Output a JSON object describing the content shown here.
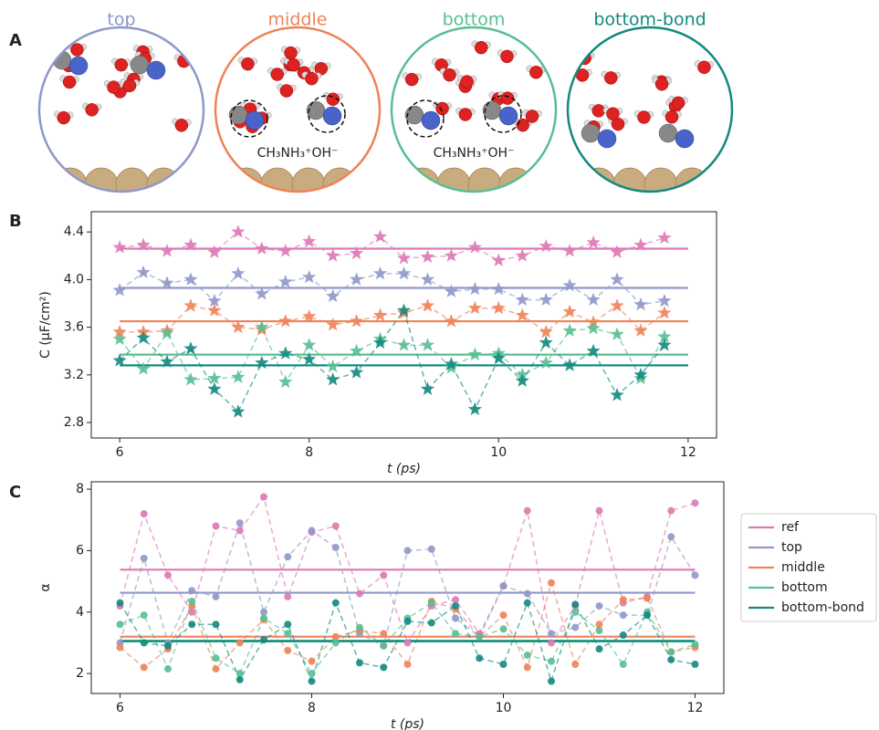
{
  "figure_panel": {
    "label": "A",
    "views": [
      {
        "title": "top",
        "color": "#8f98c9"
      },
      {
        "title": "middle",
        "color": "#ee8358",
        "annotation": "CH₃NH₃⁺OH⁻"
      },
      {
        "title": "bottom",
        "color": "#58bf93",
        "annotation": "CH₃NH₃⁺OH⁻"
      },
      {
        "title": "bottom-bond",
        "color": "#138a7f"
      }
    ]
  },
  "chart_data": [
    {
      "type": "line",
      "panel_label": "B",
      "xlabel": "t (ps)",
      "ylabel": "C (μF/cm²)",
      "marker": "star",
      "xlim": [
        5.7,
        12.3
      ],
      "ylim": [
        2.67,
        4.57
      ],
      "xticks": [
        6,
        8,
        10,
        12
      ],
      "yticks": [
        2.8,
        3.2,
        3.6,
        {
          "value": 4,
          "label": "4.0"
        },
        4.4
      ],
      "x": [
        6,
        6.25,
        6.5,
        6.75,
        7,
        7.25,
        7.5,
        7.75,
        8,
        8.25,
        8.5,
        8.75,
        9,
        9.25,
        9.5,
        9.75,
        10,
        10.25,
        10.5,
        10.75,
        11,
        11.25,
        11.5,
        11.75
      ],
      "series": [
        {
          "color": "#dd79b5",
          "mean": 4.26,
          "values": [
            4.27,
            4.29,
            4.24,
            4.29,
            4.23,
            4.4,
            4.26,
            4.24,
            4.32,
            4.2,
            4.22,
            4.36,
            4.18,
            4.19,
            4.2,
            4.27,
            4.16,
            4.2,
            4.28,
            4.24,
            4.31,
            4.23,
            4.29,
            4.35
          ]
        },
        {
          "color": "#8f98c9",
          "mean": 3.93,
          "values": [
            3.91,
            4.06,
            3.97,
            4.0,
            3.82,
            4.05,
            3.88,
            3.98,
            4.02,
            3.86,
            4.0,
            4.05,
            4.05,
            4.0,
            3.9,
            3.92,
            3.92,
            3.83,
            3.83,
            3.95,
            3.83,
            4.0,
            3.79,
            3.82
          ]
        },
        {
          "color": "#ee8358",
          "mean": 3.65,
          "values": [
            3.56,
            3.56,
            3.57,
            3.78,
            3.74,
            3.6,
            3.58,
            3.65,
            3.69,
            3.62,
            3.65,
            3.7,
            3.72,
            3.78,
            3.65,
            3.76,
            3.76,
            3.7,
            3.56,
            3.73,
            3.64,
            3.78,
            3.57,
            3.72
          ]
        },
        {
          "color": "#58bf93",
          "mean": 3.37,
          "values": [
            3.5,
            3.25,
            3.55,
            3.16,
            3.17,
            3.18,
            3.6,
            3.14,
            3.45,
            3.27,
            3.4,
            3.5,
            3.45,
            3.45,
            3.26,
            3.37,
            3.38,
            3.2,
            3.3,
            3.57,
            3.59,
            3.54,
            3.17,
            3.52
          ]
        },
        {
          "color": "#138a7f",
          "mean": 3.28,
          "values": [
            3.32,
            3.51,
            3.31,
            3.42,
            3.08,
            2.89,
            3.3,
            3.38,
            3.33,
            3.16,
            3.22,
            3.47,
            3.74,
            3.08,
            3.29,
            2.91,
            3.34,
            3.15,
            3.47,
            3.28,
            3.4,
            3.03,
            3.2,
            3.45
          ]
        }
      ]
    },
    {
      "type": "line",
      "panel_label": "C",
      "xlabel": "t (ps)",
      "ylabel": "α",
      "marker": "circle",
      "legend": "outside right",
      "xlim": [
        5.7,
        12.3
      ],
      "ylim": [
        1.35,
        8.24
      ],
      "xticks": [
        6,
        8,
        10,
        12
      ],
      "yticks": [
        2,
        4,
        6,
        8
      ],
      "x": [
        6,
        6.25,
        6.5,
        6.75,
        7,
        7.25,
        7.5,
        7.75,
        8,
        8.25,
        8.5,
        8.75,
        9,
        9.25,
        9.5,
        9.75,
        10,
        10.25,
        10.5,
        10.75,
        11,
        11.25,
        11.5,
        11.75,
        12
      ],
      "series": [
        {
          "name": "ref",
          "color": "#dd79b5",
          "mean": 5.38,
          "values": [
            4.2,
            7.2,
            5.2,
            4.0,
            6.8,
            6.65,
            7.75,
            4.5,
            6.6,
            6.8,
            4.6,
            5.2,
            3.0,
            4.2,
            4.4,
            3.3,
            4.85,
            7.3,
            3.0,
            4.2,
            7.3,
            4.3,
            4.5,
            7.3,
            7.55
          ]
        },
        {
          "name": "top",
          "color": "#8f98c9",
          "mean": 4.63,
          "values": [
            3.0,
            5.75,
            3.0,
            4.7,
            4.5,
            6.9,
            4.0,
            5.8,
            6.65,
            6.1,
            3.3,
            2.9,
            6.0,
            6.05,
            3.8,
            3.2,
            4.85,
            4.6,
            3.3,
            3.5,
            4.2,
            3.9,
            3.9,
            6.45,
            5.2
          ]
        },
        {
          "name": "middle",
          "color": "#ee8358",
          "mean": 3.2,
          "values": [
            2.85,
            2.2,
            2.8,
            4.2,
            2.15,
            3.0,
            3.75,
            2.75,
            2.4,
            3.2,
            3.4,
            3.3,
            2.3,
            4.35,
            4.1,
            3.2,
            3.9,
            2.2,
            4.95,
            2.3,
            3.6,
            4.4,
            4.45,
            2.7,
            2.85
          ]
        },
        {
          "name": "bottom",
          "color": "#58bf93",
          "mean": 3.07,
          "values": [
            3.6,
            3.9,
            2.15,
            4.35,
            2.5,
            2.0,
            3.8,
            3.3,
            2.0,
            3.0,
            3.5,
            2.9,
            3.8,
            4.3,
            3.3,
            3.2,
            3.45,
            2.6,
            2.4,
            4.0,
            3.4,
            2.3,
            4.0,
            2.7,
            2.95
          ]
        },
        {
          "name": "bottom-bond",
          "color": "#138a7f",
          "mean": 3.05,
          "values": [
            4.3,
            3.0,
            2.9,
            3.6,
            3.6,
            1.8,
            3.1,
            3.6,
            1.75,
            4.3,
            2.35,
            2.2,
            3.7,
            3.65,
            4.2,
            2.5,
            2.3,
            4.3,
            1.75,
            4.25,
            2.8,
            3.25,
            3.9,
            2.45,
            2.3
          ]
        }
      ]
    }
  ]
}
